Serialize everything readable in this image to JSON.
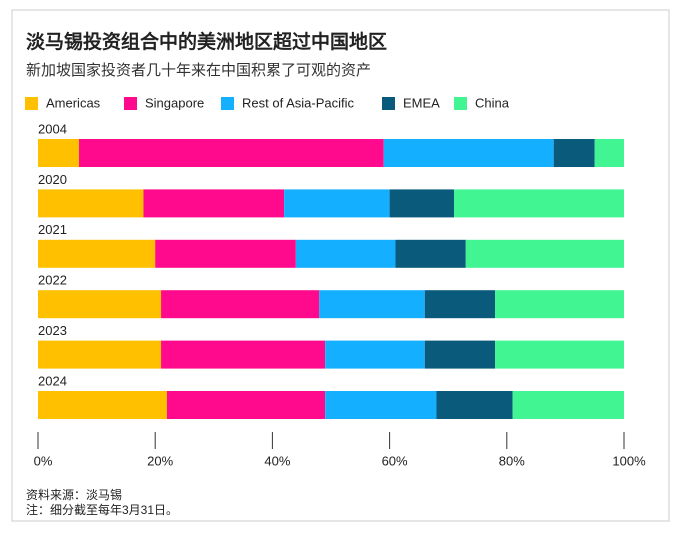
{
  "chart_data": {
    "type": "stacked-bar",
    "title": "淡马锡投资组合中的美洲地区超过中国地区",
    "subtitle": "新加坡国家投资者几十年来在中国积累了可观的资产",
    "categories": [
      "2004",
      "2020",
      "2021",
      "2022",
      "2023",
      "2024"
    ],
    "series": [
      {
        "name": "Americas",
        "color": "#ffc000",
        "values": [
          7,
          18,
          20,
          21,
          21,
          22
        ]
      },
      {
        "name": "Singapore",
        "color": "#ff0a8c",
        "values": [
          52,
          24,
          24,
          27,
          28,
          27
        ]
      },
      {
        "name": "Rest of Asia-Pacific",
        "color": "#14b0ff",
        "values": [
          29,
          18,
          17,
          18,
          17,
          19
        ]
      },
      {
        "name": "EMEA",
        "color": "#0a5a7c",
        "values": [
          7,
          11,
          12,
          12,
          12,
          13
        ]
      },
      {
        "name": "China",
        "color": "#40f592",
        "values": [
          5,
          29,
          27,
          22,
          22,
          19
        ]
      }
    ],
    "xlim": [
      0,
      100
    ],
    "xticks": [
      {
        "value": 0,
        "label": "0%"
      },
      {
        "value": 20,
        "label": "20%"
      },
      {
        "value": 40,
        "label": "40%"
      },
      {
        "value": 60,
        "label": "60%"
      },
      {
        "value": 80,
        "label": "80%"
      },
      {
        "value": 100,
        "label": "100%"
      }
    ],
    "source": "资料来源：淡马锡",
    "note": "注：细分截至每年3月31日。"
  }
}
